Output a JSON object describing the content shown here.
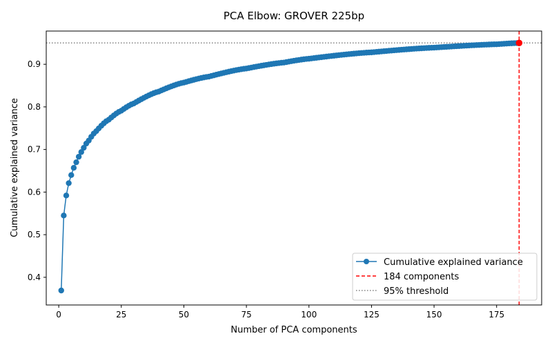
{
  "chart_data": {
    "type": "line",
    "title": "PCA Elbow: GROVER 225bp",
    "xlabel": "Number of PCA components",
    "ylabel": "Cumulative explained variance",
    "xlim": [
      -5,
      193
    ],
    "ylim": [
      0.335,
      0.978
    ],
    "xticks": [
      0,
      25,
      50,
      75,
      100,
      125,
      150,
      175
    ],
    "yticks": [
      0.4,
      0.5,
      0.6,
      0.7,
      0.8,
      0.9
    ],
    "grid": false,
    "legend_position": "lower-right",
    "series": [
      {
        "name": "Cumulative explained variance",
        "color": "#1f77b4",
        "marker": "circle",
        "n_components": 184,
        "anchor_points": [
          [
            1,
            0.369
          ],
          [
            2,
            0.545
          ],
          [
            3,
            0.592
          ],
          [
            4,
            0.621
          ],
          [
            5,
            0.64
          ],
          [
            6,
            0.657
          ],
          [
            7,
            0.67
          ],
          [
            8,
            0.683
          ],
          [
            9,
            0.694
          ],
          [
            10,
            0.704
          ],
          [
            12,
            0.721
          ],
          [
            15,
            0.743
          ],
          [
            20,
            0.77
          ],
          [
            25,
            0.791
          ],
          [
            30,
            0.808
          ],
          [
            40,
            0.836
          ],
          [
            50,
            0.857
          ],
          [
            60,
            0.871
          ],
          [
            75,
            0.89
          ],
          [
            90,
            0.904
          ],
          [
            100,
            0.913
          ],
          [
            125,
            0.928
          ],
          [
            150,
            0.939
          ],
          [
            175,
            0.947
          ],
          [
            184,
            0.95
          ]
        ]
      }
    ],
    "vline": {
      "name": "184 components",
      "x": 184,
      "color": "#ff0000",
      "style": "dashed"
    },
    "hline": {
      "name": "95% threshold",
      "y": 0.95,
      "color": "#808080",
      "style": "dotted"
    },
    "highlight_point": {
      "x": 184,
      "y": 0.95,
      "color": "#ff0000"
    }
  }
}
